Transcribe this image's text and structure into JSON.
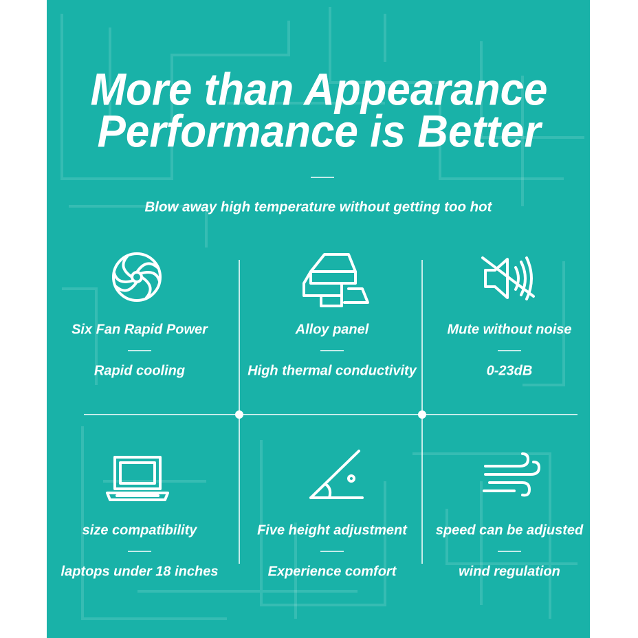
{
  "header": {
    "title": [
      "More than Appearance",
      "Performance is Better"
    ],
    "subtitle": "Blow away high temperature without getting too hot"
  },
  "features": [
    {
      "title": "Six Fan Rapid Power",
      "detail": "Rapid cooling"
    },
    {
      "title": "Alloy panel",
      "detail": "High thermal conductivity"
    },
    {
      "title": "Mute without noise",
      "detail": "0-23dB"
    },
    {
      "title": "size compatibility",
      "detail": "laptops under 18 inches"
    },
    {
      "title": "Five height adjustment",
      "detail": "Experience comfort"
    },
    {
      "title": "speed can be adjusted",
      "detail": "wind regulation"
    }
  ]
}
